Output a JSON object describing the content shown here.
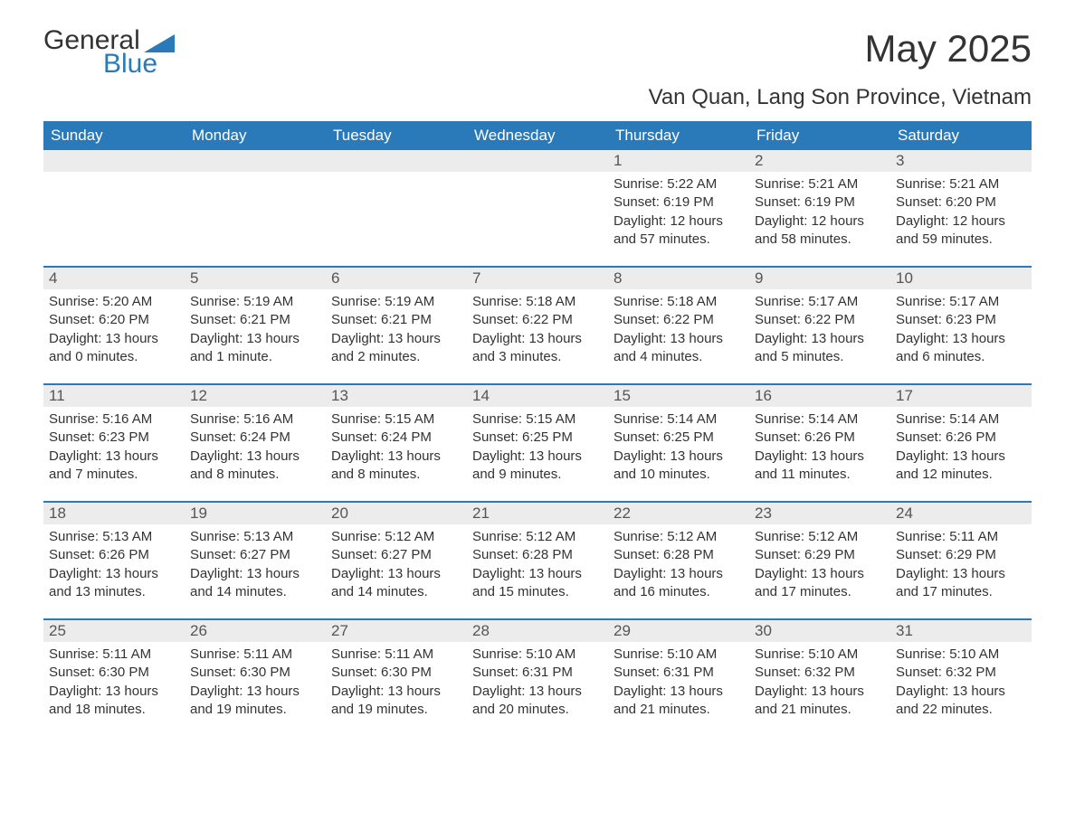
{
  "logo": {
    "general": "General",
    "blue": "Blue",
    "shape_color": "#2a7ab9"
  },
  "title": "May 2025",
  "subtitle": "Van Quan, Lang Son Province, Vietnam",
  "colors": {
    "header_bg": "#2a7ab9",
    "header_text": "#ffffff",
    "daynum_bg": "#ececec",
    "daynum_text": "#555555",
    "body_text": "#333333",
    "week_border": "#2a7ab9"
  },
  "weekdays": [
    "Sunday",
    "Monday",
    "Tuesday",
    "Wednesday",
    "Thursday",
    "Friday",
    "Saturday"
  ],
  "weeks": [
    [
      {
        "empty": true
      },
      {
        "empty": true
      },
      {
        "empty": true
      },
      {
        "empty": true
      },
      {
        "num": "1",
        "sunrise": "Sunrise: 5:22 AM",
        "sunset": "Sunset: 6:19 PM",
        "daylight": "Daylight: 12 hours and 57 minutes."
      },
      {
        "num": "2",
        "sunrise": "Sunrise: 5:21 AM",
        "sunset": "Sunset: 6:19 PM",
        "daylight": "Daylight: 12 hours and 58 minutes."
      },
      {
        "num": "3",
        "sunrise": "Sunrise: 5:21 AM",
        "sunset": "Sunset: 6:20 PM",
        "daylight": "Daylight: 12 hours and 59 minutes."
      }
    ],
    [
      {
        "num": "4",
        "sunrise": "Sunrise: 5:20 AM",
        "sunset": "Sunset: 6:20 PM",
        "daylight": "Daylight: 13 hours and 0 minutes."
      },
      {
        "num": "5",
        "sunrise": "Sunrise: 5:19 AM",
        "sunset": "Sunset: 6:21 PM",
        "daylight": "Daylight: 13 hours and 1 minute."
      },
      {
        "num": "6",
        "sunrise": "Sunrise: 5:19 AM",
        "sunset": "Sunset: 6:21 PM",
        "daylight": "Daylight: 13 hours and 2 minutes."
      },
      {
        "num": "7",
        "sunrise": "Sunrise: 5:18 AM",
        "sunset": "Sunset: 6:22 PM",
        "daylight": "Daylight: 13 hours and 3 minutes."
      },
      {
        "num": "8",
        "sunrise": "Sunrise: 5:18 AM",
        "sunset": "Sunset: 6:22 PM",
        "daylight": "Daylight: 13 hours and 4 minutes."
      },
      {
        "num": "9",
        "sunrise": "Sunrise: 5:17 AM",
        "sunset": "Sunset: 6:22 PM",
        "daylight": "Daylight: 13 hours and 5 minutes."
      },
      {
        "num": "10",
        "sunrise": "Sunrise: 5:17 AM",
        "sunset": "Sunset: 6:23 PM",
        "daylight": "Daylight: 13 hours and 6 minutes."
      }
    ],
    [
      {
        "num": "11",
        "sunrise": "Sunrise: 5:16 AM",
        "sunset": "Sunset: 6:23 PM",
        "daylight": "Daylight: 13 hours and 7 minutes."
      },
      {
        "num": "12",
        "sunrise": "Sunrise: 5:16 AM",
        "sunset": "Sunset: 6:24 PM",
        "daylight": "Daylight: 13 hours and 8 minutes."
      },
      {
        "num": "13",
        "sunrise": "Sunrise: 5:15 AM",
        "sunset": "Sunset: 6:24 PM",
        "daylight": "Daylight: 13 hours and 8 minutes."
      },
      {
        "num": "14",
        "sunrise": "Sunrise: 5:15 AM",
        "sunset": "Sunset: 6:25 PM",
        "daylight": "Daylight: 13 hours and 9 minutes."
      },
      {
        "num": "15",
        "sunrise": "Sunrise: 5:14 AM",
        "sunset": "Sunset: 6:25 PM",
        "daylight": "Daylight: 13 hours and 10 minutes."
      },
      {
        "num": "16",
        "sunrise": "Sunrise: 5:14 AM",
        "sunset": "Sunset: 6:26 PM",
        "daylight": "Daylight: 13 hours and 11 minutes."
      },
      {
        "num": "17",
        "sunrise": "Sunrise: 5:14 AM",
        "sunset": "Sunset: 6:26 PM",
        "daylight": "Daylight: 13 hours and 12 minutes."
      }
    ],
    [
      {
        "num": "18",
        "sunrise": "Sunrise: 5:13 AM",
        "sunset": "Sunset: 6:26 PM",
        "daylight": "Daylight: 13 hours and 13 minutes."
      },
      {
        "num": "19",
        "sunrise": "Sunrise: 5:13 AM",
        "sunset": "Sunset: 6:27 PM",
        "daylight": "Daylight: 13 hours and 14 minutes."
      },
      {
        "num": "20",
        "sunrise": "Sunrise: 5:12 AM",
        "sunset": "Sunset: 6:27 PM",
        "daylight": "Daylight: 13 hours and 14 minutes."
      },
      {
        "num": "21",
        "sunrise": "Sunrise: 5:12 AM",
        "sunset": "Sunset: 6:28 PM",
        "daylight": "Daylight: 13 hours and 15 minutes."
      },
      {
        "num": "22",
        "sunrise": "Sunrise: 5:12 AM",
        "sunset": "Sunset: 6:28 PM",
        "daylight": "Daylight: 13 hours and 16 minutes."
      },
      {
        "num": "23",
        "sunrise": "Sunrise: 5:12 AM",
        "sunset": "Sunset: 6:29 PM",
        "daylight": "Daylight: 13 hours and 17 minutes."
      },
      {
        "num": "24",
        "sunrise": "Sunrise: 5:11 AM",
        "sunset": "Sunset: 6:29 PM",
        "daylight": "Daylight: 13 hours and 17 minutes."
      }
    ],
    [
      {
        "num": "25",
        "sunrise": "Sunrise: 5:11 AM",
        "sunset": "Sunset: 6:30 PM",
        "daylight": "Daylight: 13 hours and 18 minutes."
      },
      {
        "num": "26",
        "sunrise": "Sunrise: 5:11 AM",
        "sunset": "Sunset: 6:30 PM",
        "daylight": "Daylight: 13 hours and 19 minutes."
      },
      {
        "num": "27",
        "sunrise": "Sunrise: 5:11 AM",
        "sunset": "Sunset: 6:30 PM",
        "daylight": "Daylight: 13 hours and 19 minutes."
      },
      {
        "num": "28",
        "sunrise": "Sunrise: 5:10 AM",
        "sunset": "Sunset: 6:31 PM",
        "daylight": "Daylight: 13 hours and 20 minutes."
      },
      {
        "num": "29",
        "sunrise": "Sunrise: 5:10 AM",
        "sunset": "Sunset: 6:31 PM",
        "daylight": "Daylight: 13 hours and 21 minutes."
      },
      {
        "num": "30",
        "sunrise": "Sunrise: 5:10 AM",
        "sunset": "Sunset: 6:32 PM",
        "daylight": "Daylight: 13 hours and 21 minutes."
      },
      {
        "num": "31",
        "sunrise": "Sunrise: 5:10 AM",
        "sunset": "Sunset: 6:32 PM",
        "daylight": "Daylight: 13 hours and 22 minutes."
      }
    ]
  ]
}
